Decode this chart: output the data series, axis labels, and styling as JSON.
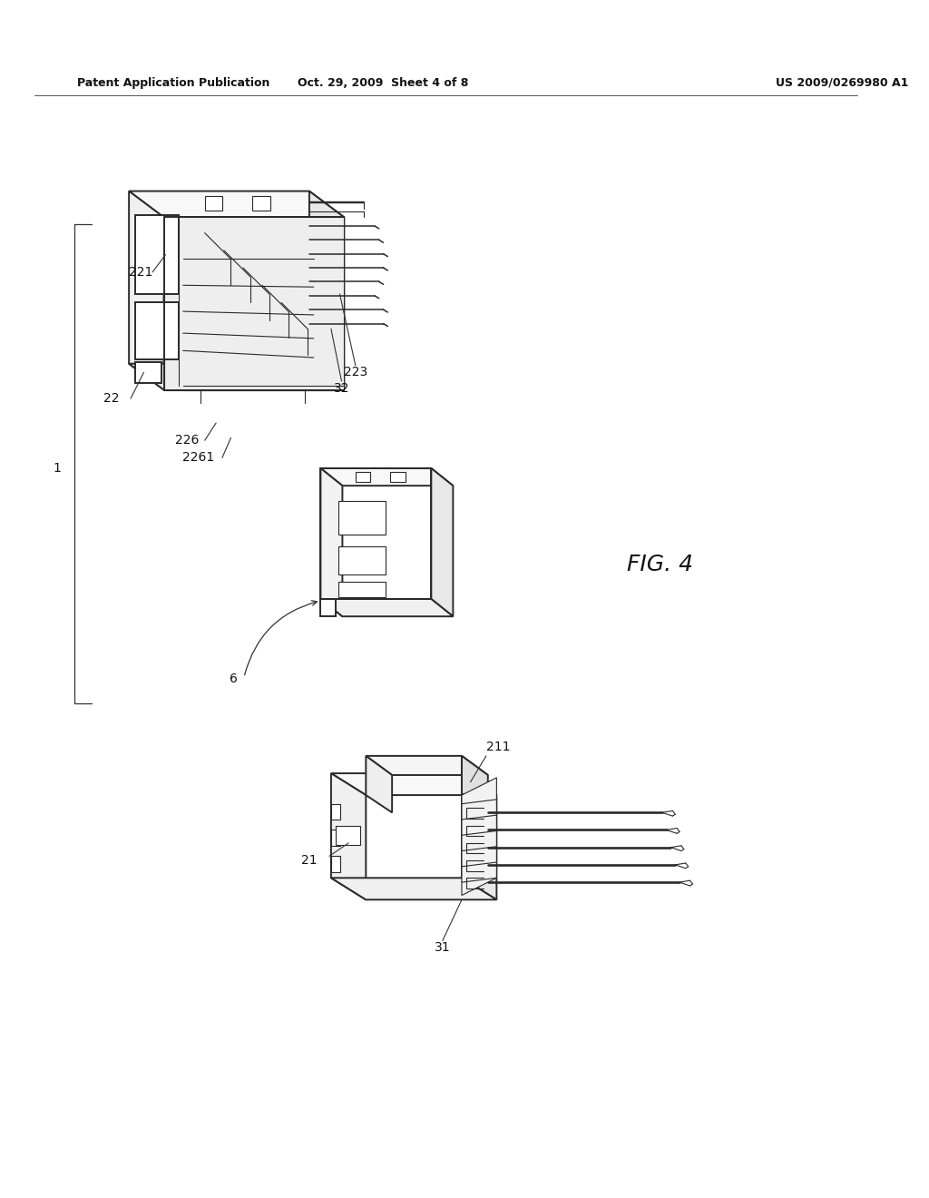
{
  "background_color": "#ffffff",
  "header_left": "Patent Application Publication",
  "header_center": "Oct. 29, 2009  Sheet 4 of 8",
  "header_right": "US 2009/0269980 A1",
  "figure_label": "FIG. 4",
  "line_color": "#2a2a2a",
  "lw_main": 1.4,
  "lw_thin": 0.8,
  "font_size_label": 10,
  "font_size_fig": 18,
  "font_size_header": 9
}
